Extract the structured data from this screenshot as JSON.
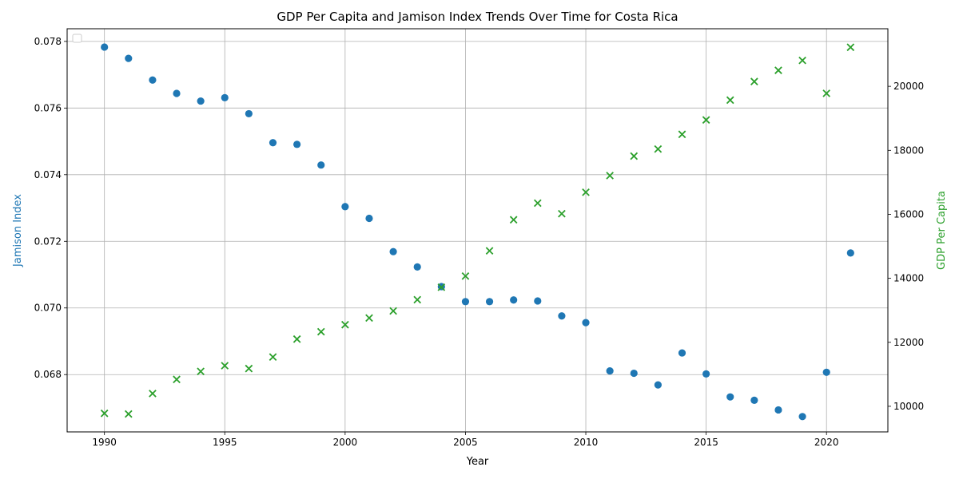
{
  "chart_data": {
    "type": "scatter",
    "title": "GDP Per Capita and Jamison Index Trends Over Time for Costa Rica",
    "xlabel": "Year",
    "ylabel_left": "Jamison Index",
    "ylabel_right": "GDP Per Capita",
    "x": [
      1990,
      1991,
      1992,
      1993,
      1994,
      1995,
      1996,
      1997,
      1998,
      1999,
      2000,
      2001,
      2002,
      2003,
      2004,
      2005,
      2006,
      2007,
      2008,
      2009,
      2010,
      2011,
      2012,
      2013,
      2014,
      2015,
      2016,
      2017,
      2018,
      2019,
      2020,
      2021
    ],
    "series": [
      {
        "axis": "left",
        "marker": "circle",
        "color": "#1f77b4",
        "values": [
          0.07783,
          0.07749,
          0.07684,
          0.07644,
          0.07621,
          0.07631,
          0.07583,
          0.07496,
          0.07491,
          0.07429,
          0.07304,
          0.07269,
          0.07169,
          0.07123,
          0.07064,
          0.07019,
          0.07019,
          0.07024,
          0.07021,
          0.06976,
          0.06956,
          0.06811,
          0.06804,
          0.06769,
          0.06865,
          0.06802,
          0.06733,
          0.06723,
          0.06694,
          0.06674,
          0.06807,
          0.07165
        ]
      },
      {
        "axis": "right",
        "marker": "x",
        "color": "#2ca02c",
        "values": [
          9780,
          9760,
          10400,
          10840,
          11090,
          11270,
          11180,
          11540,
          12100,
          12330,
          12550,
          12760,
          12980,
          13330,
          13720,
          14070,
          14860,
          15830,
          16350,
          16020,
          16690,
          17210,
          17820,
          18040,
          18500,
          18950,
          19570,
          20150,
          20500,
          20810,
          19780,
          21220
        ]
      }
    ],
    "xlim": [
      1988.45,
      2022.55
    ],
    "ylim_left": [
      0.06628,
      0.07838
    ],
    "ylim_right": [
      9200,
      21800
    ],
    "xticks": [
      "1990",
      "1995",
      "2000",
      "2005",
      "2010",
      "2015",
      "2020"
    ],
    "yticks_left": [
      "0.068",
      "0.070",
      "0.072",
      "0.074",
      "0.076",
      "0.078"
    ],
    "yticks_right": [
      "10000",
      "12000",
      "14000",
      "16000",
      "18000",
      "20000"
    ],
    "grid": true,
    "legend": "top-left, empty"
  }
}
